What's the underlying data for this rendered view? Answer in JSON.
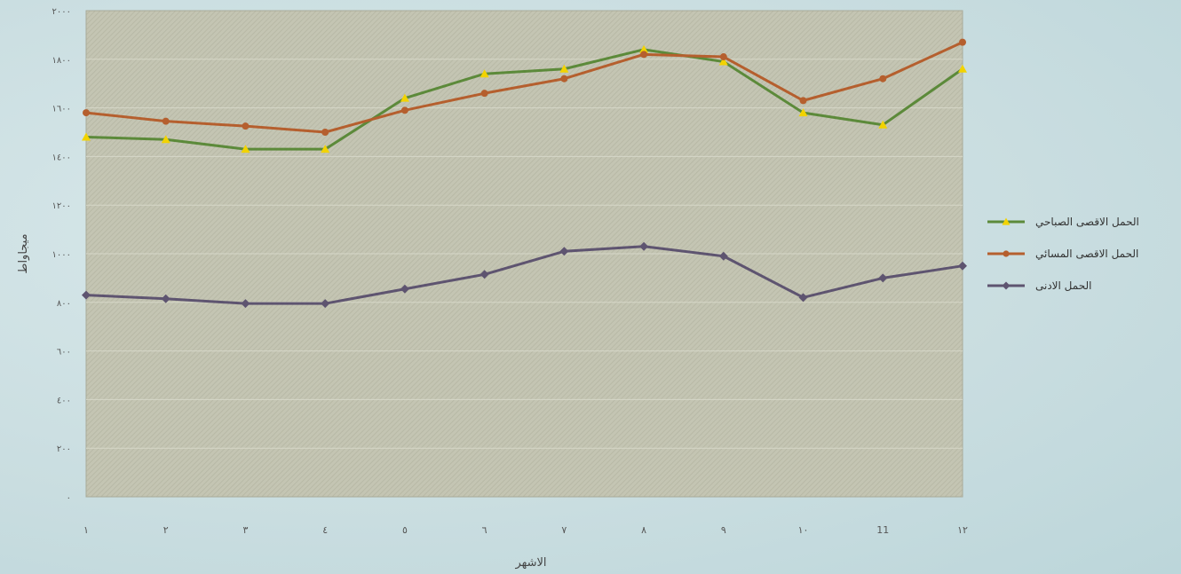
{
  "chart_data": {
    "type": "line",
    "title": "",
    "xlabel": "الاشهر",
    "ylabel": "ميجاواط",
    "categories": [
      "١",
      "٢",
      "٣",
      "٤",
      "٥",
      "٦",
      "٧",
      "٨",
      "٩",
      "١٠",
      "11",
      "١٢"
    ],
    "x": [
      1,
      2,
      3,
      4,
      5,
      6,
      7,
      8,
      9,
      10,
      11,
      12
    ],
    "yticks": [
      "٠",
      "٢٠٠",
      "٤٠٠",
      "٦٠٠",
      "٨٠٠",
      "١٠٠٠",
      "١٢٠٠",
      "١٤٠٠",
      "١٦٠٠",
      "١٨٠٠",
      "٢٠٠٠"
    ],
    "ylim": [
      0,
      2000
    ],
    "grid": true,
    "legend_position": "right",
    "series": [
      {
        "name": "الحمل الاقصى الصباحي",
        "marker": "triangle",
        "color": "#5c8a3a",
        "marker_color": "#f2d300",
        "values": [
          1480,
          1470,
          1430,
          1430,
          1640,
          1740,
          1760,
          1840,
          1790,
          1580,
          1530,
          1760
        ]
      },
      {
        "name": "الحمل الاقصى المسائي",
        "marker": "circle",
        "color": "#b55f2e",
        "marker_color": "#b55f2e",
        "values": [
          1580,
          1545,
          1525,
          1500,
          1590,
          1660,
          1720,
          1820,
          1810,
          1630,
          1720,
          1870
        ]
      },
      {
        "name": "الحمل الادنى",
        "marker": "diamond",
        "color": "#5e5470",
        "marker_color": "#5e5470",
        "values": [
          830,
          815,
          795,
          795,
          855,
          915,
          1010,
          1030,
          990,
          820,
          900,
          950
        ]
      }
    ]
  }
}
